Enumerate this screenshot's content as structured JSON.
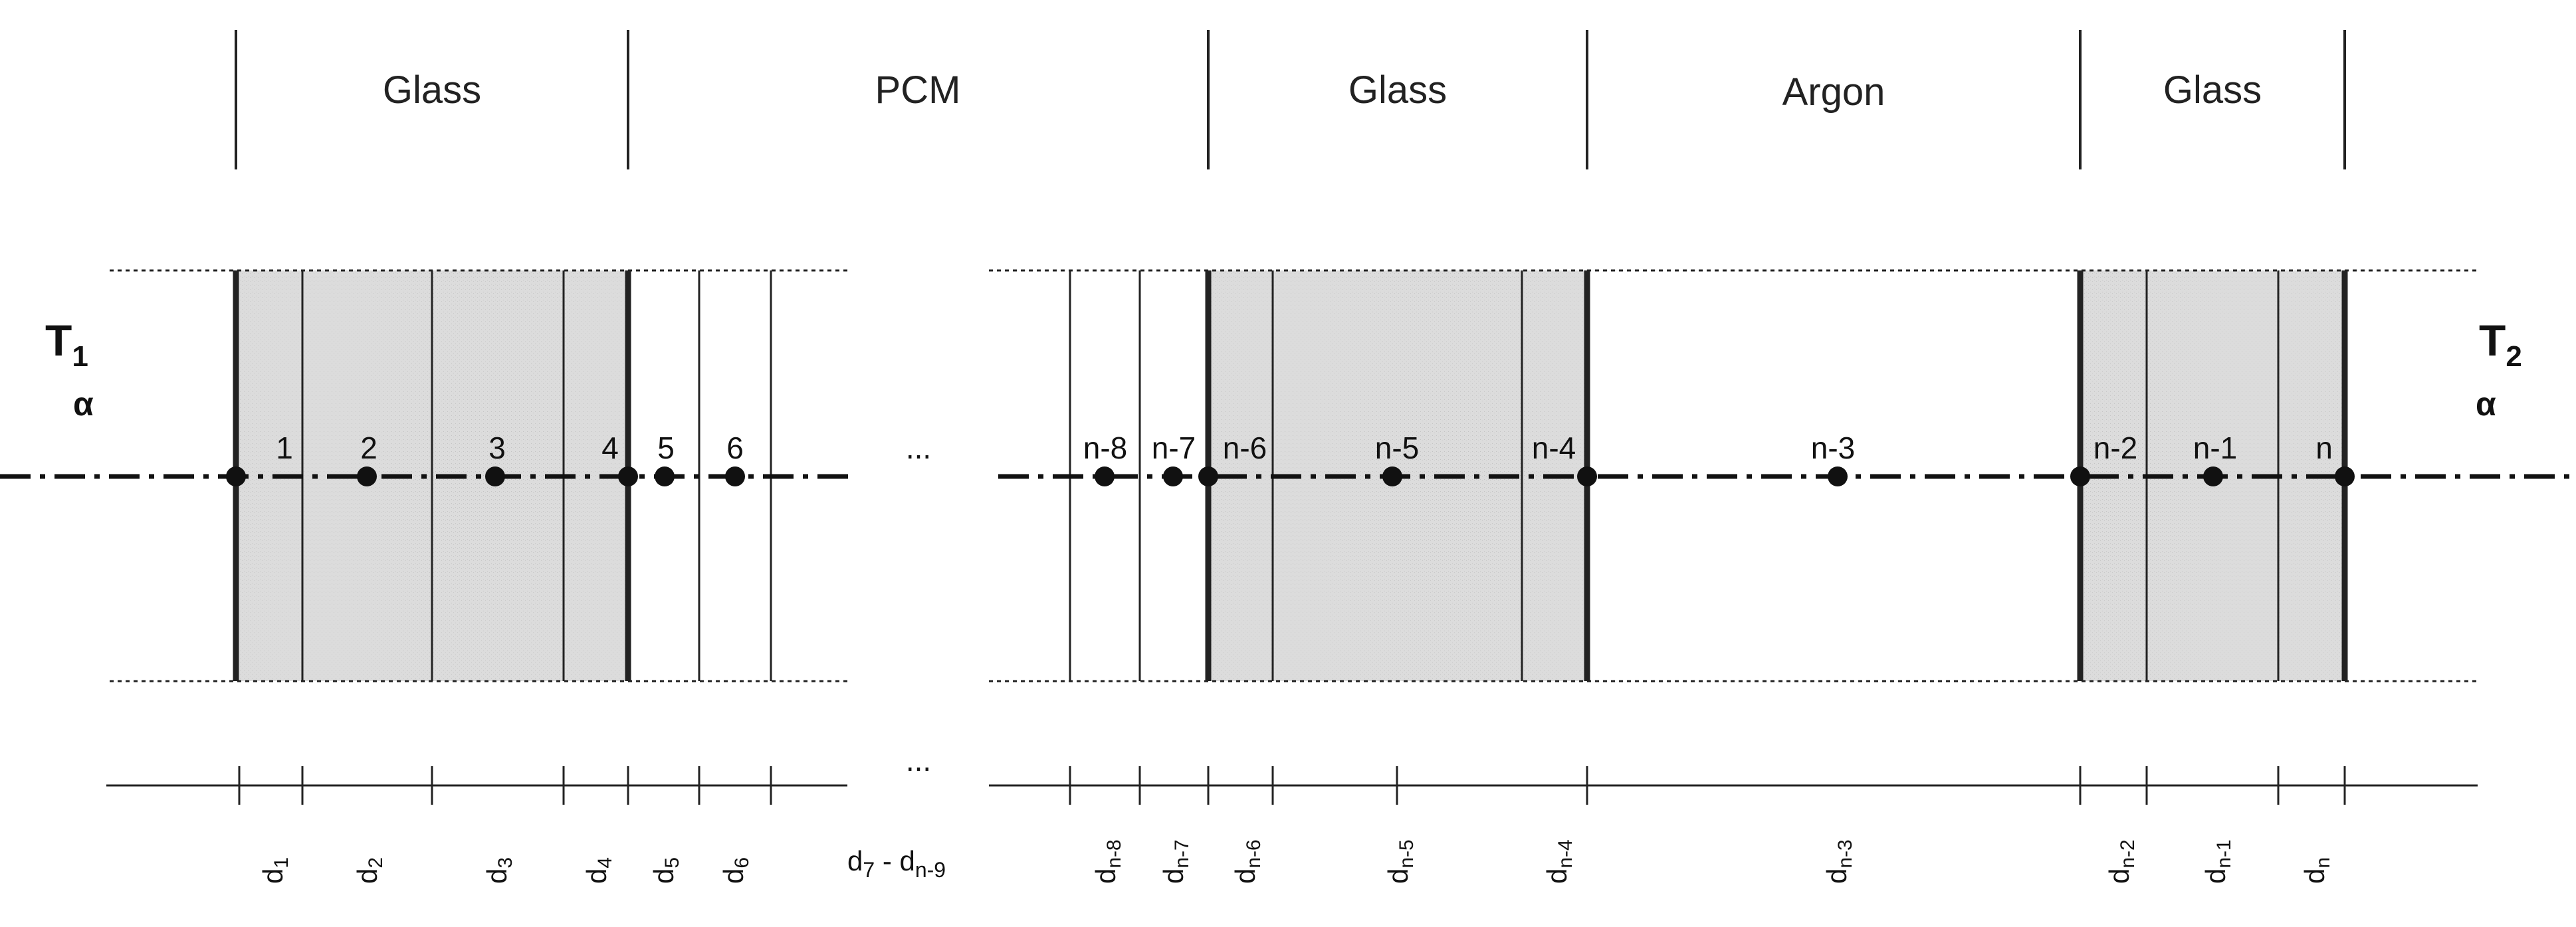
{
  "materials": [
    {
      "label": "Glass"
    },
    {
      "label": "PCM"
    },
    {
      "label": "Glass"
    },
    {
      "label": "Argon"
    },
    {
      "label": "Glass"
    }
  ],
  "boundary": {
    "left": {
      "T": "T",
      "sub": "1",
      "coef": "α"
    },
    "right": {
      "T": "T",
      "sub": "2",
      "coef": "α"
    }
  },
  "nodes": [
    {
      "label": "1"
    },
    {
      "label": "2"
    },
    {
      "label": "3"
    },
    {
      "label": "4"
    },
    {
      "label": "5"
    },
    {
      "label": "6"
    },
    {
      "label": "n-8"
    },
    {
      "label": "n-7"
    },
    {
      "label": "n-6"
    },
    {
      "label": "n-5"
    },
    {
      "label": "n-4"
    },
    {
      "label": "n-3"
    },
    {
      "label": "n-2"
    },
    {
      "label": "n-1"
    },
    {
      "label": "n"
    }
  ],
  "thickness_labels": [
    {
      "base": "d",
      "sub": "1"
    },
    {
      "base": "d",
      "sub": "2"
    },
    {
      "base": "d",
      "sub": "3"
    },
    {
      "base": "d",
      "sub": "4"
    },
    {
      "base": "d",
      "sub": "5"
    },
    {
      "base": "d",
      "sub": "6"
    },
    {
      "base": "d",
      "sub": "n-8"
    },
    {
      "base": "d",
      "sub": "n-7"
    },
    {
      "base": "d",
      "sub": "n-6"
    },
    {
      "base": "d",
      "sub": "n-5"
    },
    {
      "base": "d",
      "sub": "n-4"
    },
    {
      "base": "d",
      "sub": "n-3"
    },
    {
      "base": "d",
      "sub": "n-2"
    },
    {
      "base": "d",
      "sub": "n-1"
    },
    {
      "base": "d",
      "sub": "n"
    }
  ],
  "middle_range_label": {
    "base": "d",
    "sub1": "7",
    "mid": " - d",
    "sub2": "n-9"
  },
  "ellipsis": "..."
}
